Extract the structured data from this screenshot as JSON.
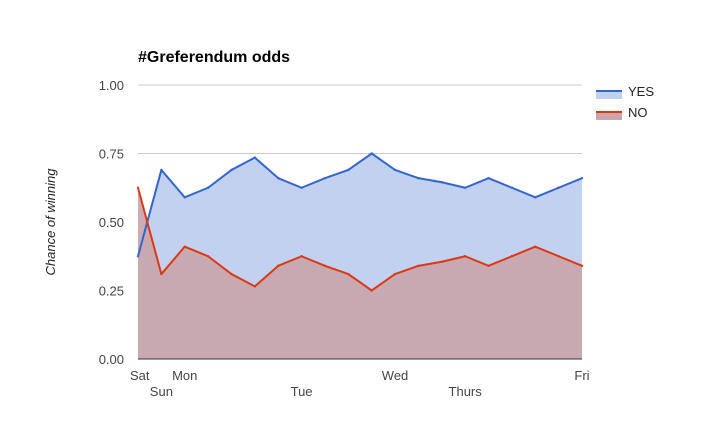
{
  "chart_data": {
    "type": "area",
    "title": "#Greferendum odds",
    "xlabel": "",
    "ylabel": "Chance of winning",
    "ylim": [
      0,
      1
    ],
    "y_ticks": [
      "0.00",
      "0.25",
      "0.50",
      "0.75",
      "1.00"
    ],
    "x_tick_labels": [
      {
        "index": 0,
        "label": "Sat"
      },
      {
        "index": 1,
        "label": "Sun"
      },
      {
        "index": 2,
        "label": "Mon"
      },
      {
        "index": 7,
        "label": "Tue"
      },
      {
        "index": 11,
        "label": "Wed"
      },
      {
        "index": 14,
        "label": "Thurs"
      },
      {
        "index": 19,
        "label": "Fri"
      }
    ],
    "grid": true,
    "legend_position": "right",
    "series": [
      {
        "name": "YES",
        "color": "#3366cc",
        "fill": "#c3d1f0",
        "values": [
          0.375,
          0.69,
          0.59,
          0.625,
          0.69,
          0.735,
          0.66,
          0.625,
          0.66,
          0.69,
          0.75,
          0.69,
          0.66,
          0.645,
          0.625,
          0.66,
          0.625,
          0.59,
          0.625,
          0.66
        ]
      },
      {
        "name": "NO",
        "color": "#dc3912",
        "fill": "#c9a5ad",
        "values": [
          0.625,
          0.31,
          0.41,
          0.375,
          0.31,
          0.265,
          0.34,
          0.375,
          0.34,
          0.31,
          0.25,
          0.31,
          0.34,
          0.355,
          0.375,
          0.34,
          0.375,
          0.41,
          0.375,
          0.34
        ]
      }
    ]
  }
}
